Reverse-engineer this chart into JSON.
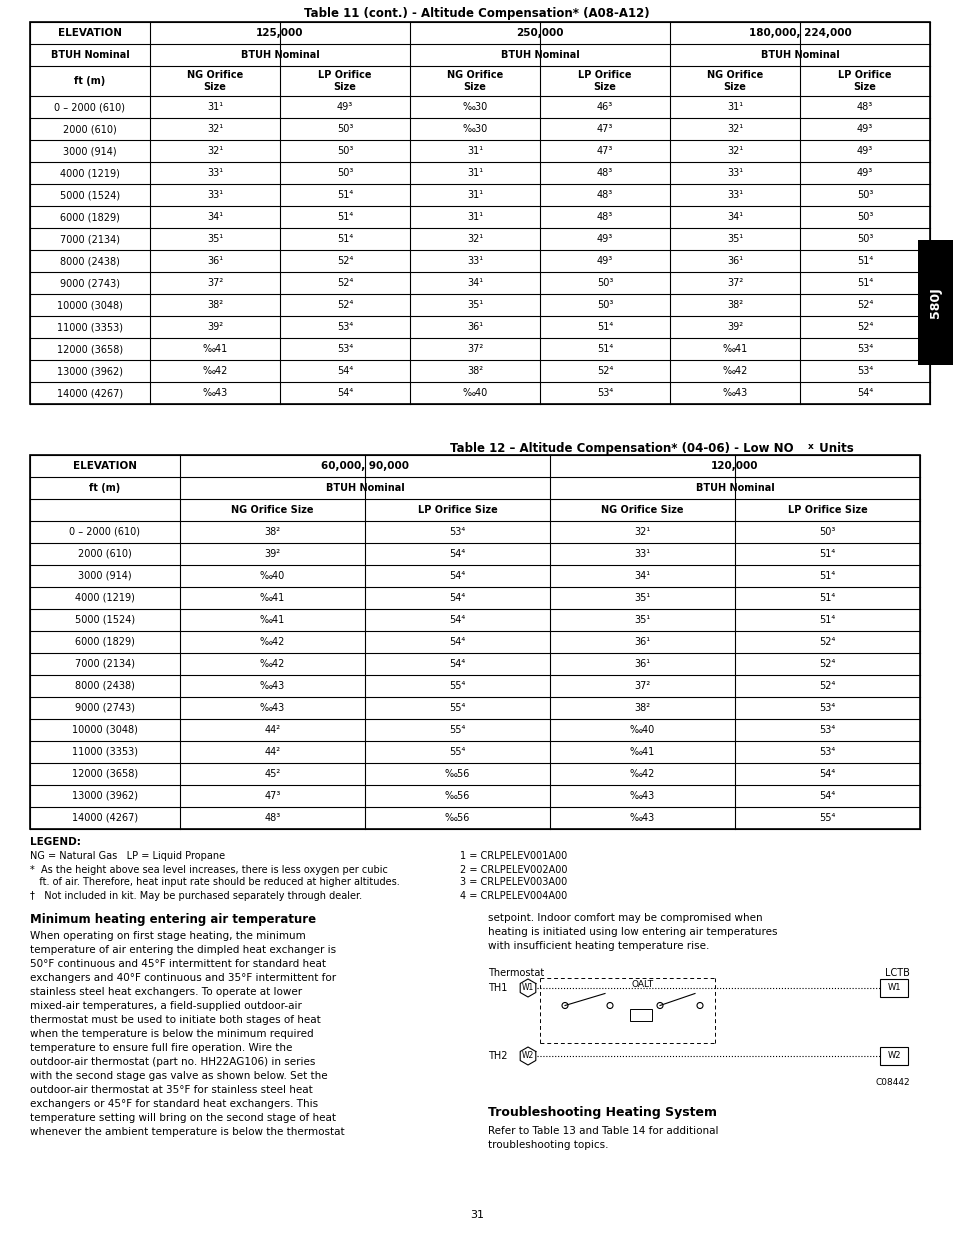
{
  "page_bg": "#ffffff",
  "title1": "Table 11 (cont.) - Altitude Compensation* (A08-A12)",
  "table1_data": [
    [
      "0 – 2000 (610)",
      "31¹",
      "49³",
      "‰30",
      "46³",
      "31¹",
      "48³"
    ],
    [
      "2000 (610)",
      "32¹",
      "50³",
      "‰30",
      "47³",
      "32¹",
      "49³"
    ],
    [
      "3000 (914)",
      "32¹",
      "50³",
      "31¹",
      "47³",
      "32¹",
      "49³"
    ],
    [
      "4000 (1219)",
      "33¹",
      "50³",
      "31¹",
      "48³",
      "33¹",
      "49³"
    ],
    [
      "5000 (1524)",
      "33¹",
      "51⁴",
      "31¹",
      "48³",
      "33¹",
      "50³"
    ],
    [
      "6000 (1829)",
      "34¹",
      "51⁴",
      "31¹",
      "48³",
      "34¹",
      "50³"
    ],
    [
      "7000 (2134)",
      "35¹",
      "51⁴",
      "32¹",
      "49³",
      "35¹",
      "50³"
    ],
    [
      "8000 (2438)",
      "36¹",
      "52⁴",
      "33¹",
      "49³",
      "36¹",
      "51⁴"
    ],
    [
      "9000 (2743)",
      "37²",
      "52⁴",
      "34¹",
      "50³",
      "37²",
      "51⁴"
    ],
    [
      "10000 (3048)",
      "38²",
      "52⁴",
      "35¹",
      "50³",
      "38²",
      "52⁴"
    ],
    [
      "11000 (3353)",
      "39²",
      "53⁴",
      "36¹",
      "51⁴",
      "39²",
      "52⁴"
    ],
    [
      "12000 (3658)",
      "‰41",
      "53⁴",
      "37²",
      "51⁴",
      "‰41",
      "53⁴"
    ],
    [
      "13000 (3962)",
      "‰42",
      "54⁴",
      "38²",
      "52⁴",
      "‰42",
      "53⁴"
    ],
    [
      "14000 (4267)",
      "‰43",
      "54⁴",
      "‰40",
      "53⁴",
      "‰43",
      "54⁴"
    ]
  ],
  "table2_data": [
    [
      "0 – 2000 (610)",
      "38²",
      "53⁴",
      "32¹",
      "50³"
    ],
    [
      "2000 (610)",
      "39²",
      "54⁴",
      "33¹",
      "51⁴"
    ],
    [
      "3000 (914)",
      "‰40",
      "54⁴",
      "34¹",
      "51⁴"
    ],
    [
      "4000 (1219)",
      "‰41",
      "54⁴",
      "35¹",
      "51⁴"
    ],
    [
      "5000 (1524)",
      "‰41",
      "54⁴",
      "35¹",
      "51⁴"
    ],
    [
      "6000 (1829)",
      "‰42",
      "54⁴",
      "36¹",
      "52⁴"
    ],
    [
      "7000 (2134)",
      "‰42",
      "54⁴",
      "36¹",
      "52⁴"
    ],
    [
      "8000 (2438)",
      "‰43",
      "55⁴",
      "37²",
      "52⁴"
    ],
    [
      "9000 (2743)",
      "‰43",
      "55⁴",
      "38²",
      "53⁴"
    ],
    [
      "10000 (3048)",
      "44²",
      "55⁴",
      "‰40",
      "53⁴"
    ],
    [
      "11000 (3353)",
      "44²",
      "55⁴",
      "‰41",
      "53⁴"
    ],
    [
      "12000 (3658)",
      "45²",
      "‰56",
      "‰42",
      "54⁴"
    ],
    [
      "13000 (3962)",
      "47³",
      "‰56",
      "‰43",
      "54⁴"
    ],
    [
      "14000 (4267)",
      "48³",
      "‰56",
      "‰43",
      "55⁴"
    ]
  ],
  "section_body": "When operating on first stage heating, the minimum\ntemperature of air entering the dimpled heat exchanger is\n50°F continuous and 45°F intermittent for standard heat\nexchangers and 40°F continuous and 35°F intermittent for\nstainless steel heat exchangers. To operate at lower\nmixed-air temperatures, a field-supplied outdoor-air\nthermostat must be used to initiate both stages of heat\nwhen the temperature is below the minimum required\ntemperature to ensure full fire operation. Wire the\noutdoor-air thermostat (part no. HH22AG106) in series\nwith the second stage gas valve as shown below. Set the\noutdoor-air thermostat at 35°F for stainless steel heat\nexchangers or 45°F for standard heat exchangers. This\ntemperature setting will bring on the second stage of heat\nwhenever the ambient temperature is below the thermostat",
  "section_right_body": "setpoint. Indoor comfort may be compromised when\nheating is initiated using low entering air temperatures\nwith insufficient heating temperature rise.",
  "section2_body": "Refer to Table 13 and Table 14 for additional\ntroubleshooting topics.",
  "page_number": "31"
}
